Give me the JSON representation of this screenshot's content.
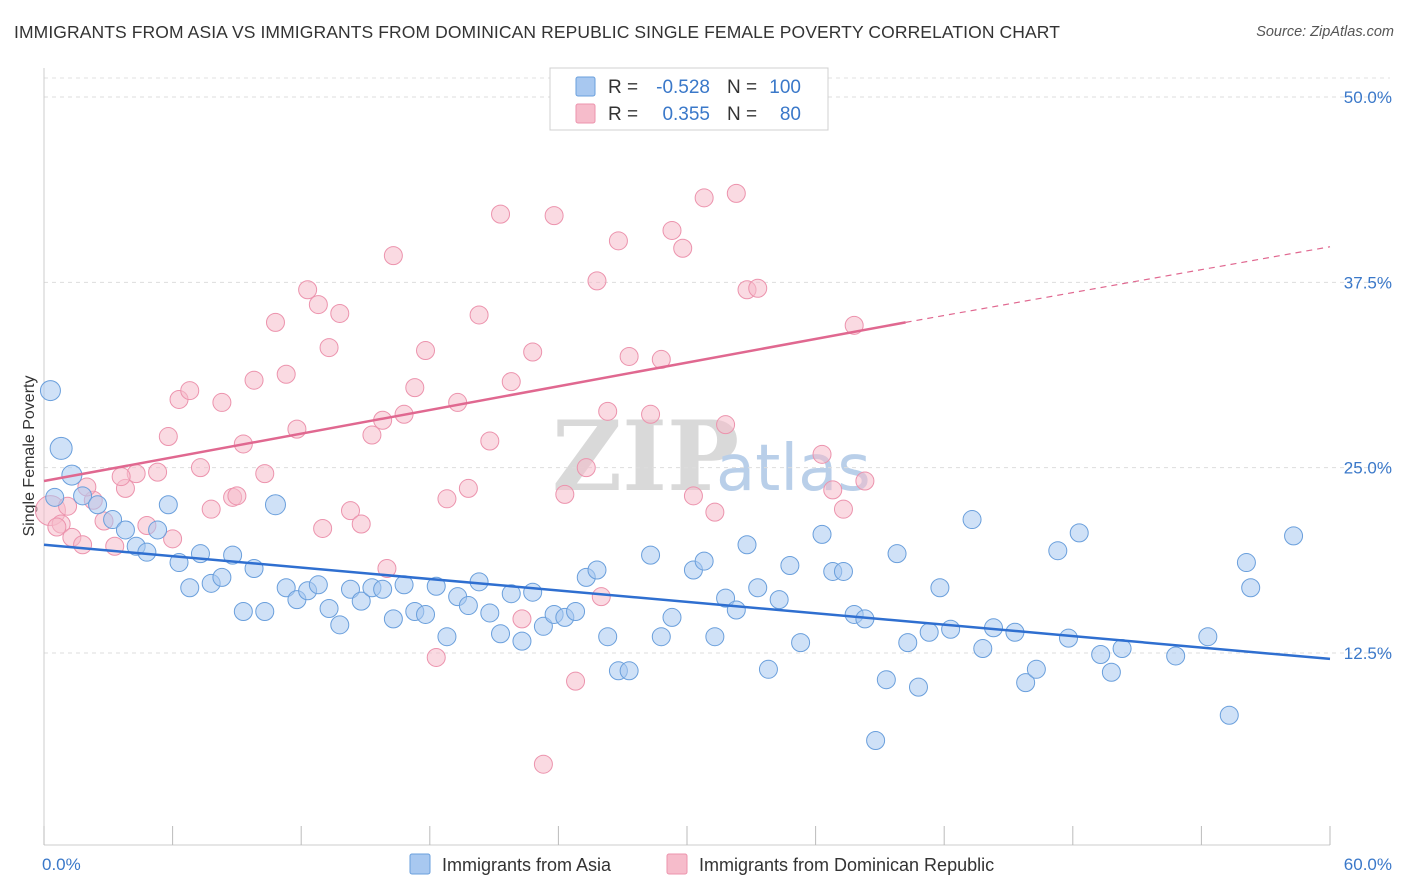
{
  "header": {
    "title": "IMMIGRANTS FROM ASIA VS IMMIGRANTS FROM DOMINICAN REPUBLIC SINGLE FEMALE POVERTY CORRELATION CHART",
    "source": "Source: ZipAtlas.com"
  },
  "watermark": {
    "zip": "ZIP",
    "atlas": "atlas"
  },
  "colors": {
    "asia_fill": "#a8c8f0",
    "asia_stroke": "#6a9fdc",
    "asia_line": "#2f6fd0",
    "dr_fill": "#f6bccb",
    "dr_stroke": "#ec93ad",
    "dr_line": "#e06890",
    "axis_text": "#3a78c9",
    "grid": "#d8d8d8"
  },
  "legend": {
    "rows": [
      {
        "r_label": "R =",
        "r_value": "-0.528",
        "n_label": "N =",
        "n_value": "100"
      },
      {
        "r_label": "R =",
        "r_value": "0.355",
        "n_label": "N =",
        "n_value": "80"
      }
    ]
  },
  "chart_data": {
    "type": "scatter",
    "title": "IMMIGRANTS FROM ASIA VS IMMIGRANTS FROM DOMINICAN REPUBLIC SINGLE FEMALE POVERTY CORRELATION CHART",
    "xlabel": "",
    "ylabel": "Single Female Poverty",
    "xlim": [
      0,
      60
    ],
    "ylim": [
      0,
      52
    ],
    "x_tick_labels": [
      "0.0%",
      "60.0%"
    ],
    "y_ticks": [
      12.5,
      25.0,
      37.5,
      50.0
    ],
    "y_tick_labels": [
      "12.5%",
      "25.0%",
      "37.5%",
      "50.0%"
    ],
    "legend_position": "top-center",
    "series": [
      {
        "name": "Immigrants from Asia",
        "color": "#a8c8f0",
        "R": -0.528,
        "N": 100,
        "trend": {
          "x": [
            0,
            60
          ],
          "y": [
            19.8,
            12.1
          ],
          "dashed_from": null
        },
        "points": [
          [
            0.3,
            30.2,
            10
          ],
          [
            0.8,
            26.3,
            11
          ],
          [
            1.3,
            24.5,
            10
          ],
          [
            1.8,
            23.1,
            9
          ],
          [
            2.5,
            22.5,
            9
          ],
          [
            3.2,
            21.5,
            9
          ],
          [
            3.8,
            20.8,
            9
          ],
          [
            4.3,
            19.7,
            9
          ],
          [
            4.8,
            19.3,
            9
          ],
          [
            5.3,
            20.8,
            9
          ],
          [
            5.8,
            22.5,
            9
          ],
          [
            6.3,
            18.6,
            9
          ],
          [
            6.8,
            16.9,
            9
          ],
          [
            7.3,
            19.2,
            9
          ],
          [
            7.8,
            17.2,
            9
          ],
          [
            8.3,
            17.6,
            9
          ],
          [
            8.8,
            19.1,
            9
          ],
          [
            9.3,
            15.3,
            9
          ],
          [
            9.8,
            18.2,
            9
          ],
          [
            10.3,
            15.3,
            9
          ],
          [
            10.8,
            22.5,
            10
          ],
          [
            11.3,
            16.9,
            9
          ],
          [
            11.8,
            16.1,
            9
          ],
          [
            12.3,
            16.7,
            9
          ],
          [
            12.8,
            17.1,
            9
          ],
          [
            13.3,
            15.5,
            9
          ],
          [
            13.8,
            14.4,
            9
          ],
          [
            14.3,
            16.8,
            9
          ],
          [
            14.8,
            16.0,
            9
          ],
          [
            15.3,
            16.9,
            9
          ],
          [
            15.8,
            16.8,
            9
          ],
          [
            16.3,
            14.8,
            9
          ],
          [
            16.8,
            17.1,
            9
          ],
          [
            17.3,
            15.3,
            9
          ],
          [
            17.8,
            15.1,
            9
          ],
          [
            18.3,
            17.0,
            9
          ],
          [
            18.8,
            13.6,
            9
          ],
          [
            19.3,
            16.3,
            9
          ],
          [
            19.8,
            15.7,
            9
          ],
          [
            20.3,
            17.3,
            9
          ],
          [
            20.8,
            15.2,
            9
          ],
          [
            21.3,
            13.8,
            9
          ],
          [
            21.8,
            16.5,
            9
          ],
          [
            22.3,
            13.3,
            9
          ],
          [
            22.8,
            16.6,
            9
          ],
          [
            23.3,
            14.3,
            9
          ],
          [
            23.8,
            15.1,
            9
          ],
          [
            24.3,
            14.9,
            9
          ],
          [
            24.8,
            15.3,
            9
          ],
          [
            25.3,
            17.6,
            9
          ],
          [
            25.8,
            18.1,
            9
          ],
          [
            26.3,
            13.6,
            9
          ],
          [
            26.8,
            11.3,
            9
          ],
          [
            27.3,
            11.3,
            9
          ],
          [
            28.3,
            19.1,
            9
          ],
          [
            28.8,
            13.6,
            9
          ],
          [
            29.3,
            14.9,
            9
          ],
          [
            30.3,
            18.1,
            9
          ],
          [
            30.8,
            18.7,
            9
          ],
          [
            31.3,
            13.6,
            9
          ],
          [
            31.8,
            16.2,
            9
          ],
          [
            32.3,
            15.4,
            9
          ],
          [
            32.8,
            19.8,
            9
          ],
          [
            33.3,
            16.9,
            9
          ],
          [
            33.8,
            11.4,
            9
          ],
          [
            34.3,
            16.1,
            9
          ],
          [
            34.8,
            18.4,
            9
          ],
          [
            35.3,
            13.2,
            9
          ],
          [
            36.3,
            20.5,
            9
          ],
          [
            36.8,
            18.0,
            9
          ],
          [
            37.3,
            18.0,
            9
          ],
          [
            37.8,
            15.1,
            9
          ],
          [
            38.3,
            14.8,
            9
          ],
          [
            38.8,
            6.6,
            9
          ],
          [
            39.3,
            10.7,
            9
          ],
          [
            39.8,
            19.2,
            9
          ],
          [
            40.3,
            13.2,
            9
          ],
          [
            40.8,
            10.2,
            9
          ],
          [
            41.3,
            13.9,
            9
          ],
          [
            41.8,
            16.9,
            9
          ],
          [
            42.3,
            14.1,
            9
          ],
          [
            43.3,
            21.5,
            9
          ],
          [
            43.8,
            12.8,
            9
          ],
          [
            44.3,
            14.2,
            9
          ],
          [
            45.3,
            13.9,
            9
          ],
          [
            45.8,
            10.5,
            9
          ],
          [
            46.3,
            11.4,
            9
          ],
          [
            47.3,
            19.4,
            9
          ],
          [
            47.8,
            13.5,
            9
          ],
          [
            48.3,
            20.6,
            9
          ],
          [
            49.3,
            12.4,
            9
          ],
          [
            49.8,
            11.2,
            9
          ],
          [
            50.3,
            12.8,
            9
          ],
          [
            52.8,
            12.3,
            9
          ],
          [
            54.3,
            13.6,
            9
          ],
          [
            55.3,
            8.3,
            9
          ],
          [
            56.3,
            16.9,
            9
          ],
          [
            58.3,
            20.4,
            9
          ],
          [
            0.5,
            23.0,
            9
          ],
          [
            56.1,
            18.6,
            9
          ]
        ]
      },
      {
        "name": "Immigrants from Dominican Republic",
        "color": "#f6bccb",
        "R": 0.355,
        "N": 80,
        "trend": {
          "x": [
            0,
            40.2
          ],
          "y": [
            24.1,
            34.8
          ],
          "dashed_to": [
            60,
            39.9
          ]
        },
        "points": [
          [
            0.3,
            22.1,
            15
          ],
          [
            0.8,
            21.2,
            9
          ],
          [
            1.3,
            20.3,
            9
          ],
          [
            1.8,
            19.8,
            9
          ],
          [
            2.3,
            22.8,
            9
          ],
          [
            2.8,
            21.4,
            9
          ],
          [
            3.3,
            19.7,
            9
          ],
          [
            3.8,
            23.6,
            9
          ],
          [
            4.3,
            24.6,
            9
          ],
          [
            4.8,
            21.1,
            9
          ],
          [
            5.3,
            24.7,
            9
          ],
          [
            5.8,
            27.1,
            9
          ],
          [
            6.3,
            29.6,
            9
          ],
          [
            6.8,
            30.2,
            9
          ],
          [
            7.3,
            25.0,
            9
          ],
          [
            7.8,
            22.2,
            9
          ],
          [
            8.3,
            29.4,
            9
          ],
          [
            8.8,
            23.0,
            9
          ],
          [
            9.3,
            26.6,
            9
          ],
          [
            9.8,
            30.9,
            9
          ],
          [
            10.3,
            24.6,
            9
          ],
          [
            10.8,
            34.8,
            9
          ],
          [
            11.3,
            31.3,
            9
          ],
          [
            11.8,
            27.6,
            9
          ],
          [
            12.3,
            37.0,
            9
          ],
          [
            12.8,
            36.0,
            9
          ],
          [
            13.3,
            33.1,
            9
          ],
          [
            13.8,
            35.4,
            9
          ],
          [
            14.3,
            22.1,
            9
          ],
          [
            14.8,
            21.2,
            9
          ],
          [
            15.3,
            27.2,
            9
          ],
          [
            15.8,
            28.2,
            9
          ],
          [
            16.3,
            39.3,
            9
          ],
          [
            16.8,
            28.6,
            9
          ],
          [
            17.3,
            30.4,
            9
          ],
          [
            17.8,
            32.9,
            9
          ],
          [
            18.3,
            12.2,
            9
          ],
          [
            18.8,
            22.9,
            9
          ],
          [
            19.3,
            29.4,
            9
          ],
          [
            19.8,
            23.6,
            9
          ],
          [
            20.3,
            35.3,
            9
          ],
          [
            20.8,
            26.8,
            9
          ],
          [
            21.3,
            42.1,
            9
          ],
          [
            21.8,
            30.8,
            9
          ],
          [
            22.3,
            14.8,
            9
          ],
          [
            22.8,
            32.8,
            9
          ],
          [
            23.3,
            5.0,
            9
          ],
          [
            23.8,
            42.0,
            9
          ],
          [
            24.3,
            23.2,
            9
          ],
          [
            24.8,
            10.6,
            9
          ],
          [
            25.3,
            25.0,
            9
          ],
          [
            25.8,
            37.6,
            9
          ],
          [
            26.3,
            28.8,
            9
          ],
          [
            26.8,
            40.3,
            9
          ],
          [
            27.3,
            32.5,
            9
          ],
          [
            28.3,
            28.6,
            9
          ],
          [
            28.8,
            32.3,
            9
          ],
          [
            29.3,
            41.0,
            9
          ],
          [
            29.8,
            39.8,
            9
          ],
          [
            30.3,
            23.1,
            9
          ],
          [
            30.8,
            43.2,
            9
          ],
          [
            31.3,
            22.0,
            9
          ],
          [
            31.8,
            27.9,
            9
          ],
          [
            32.3,
            43.5,
            9
          ],
          [
            32.8,
            37.0,
            9
          ],
          [
            33.3,
            37.1,
            9
          ],
          [
            36.3,
            25.9,
            9
          ],
          [
            36.8,
            23.5,
            9
          ],
          [
            37.3,
            22.2,
            9
          ],
          [
            37.8,
            34.6,
            9
          ],
          [
            38.3,
            24.1,
            9
          ],
          [
            0.6,
            21.0,
            9
          ],
          [
            1.1,
            22.4,
            9
          ],
          [
            2.0,
            23.7,
            9
          ],
          [
            3.6,
            24.4,
            9
          ],
          [
            6.0,
            20.2,
            9
          ],
          [
            9.0,
            23.1,
            9
          ],
          [
            13.0,
            20.9,
            9
          ],
          [
            16.0,
            18.2,
            9
          ],
          [
            26.0,
            16.3,
            9
          ]
        ]
      }
    ]
  },
  "bottom_legend": {
    "items": [
      {
        "label": "Immigrants from Asia"
      },
      {
        "label": "Immigrants from Dominican Republic"
      }
    ]
  },
  "axes": {
    "ylabel": "Single Female Poverty",
    "x_min_label": "0.0%",
    "x_max_label": "60.0%"
  }
}
